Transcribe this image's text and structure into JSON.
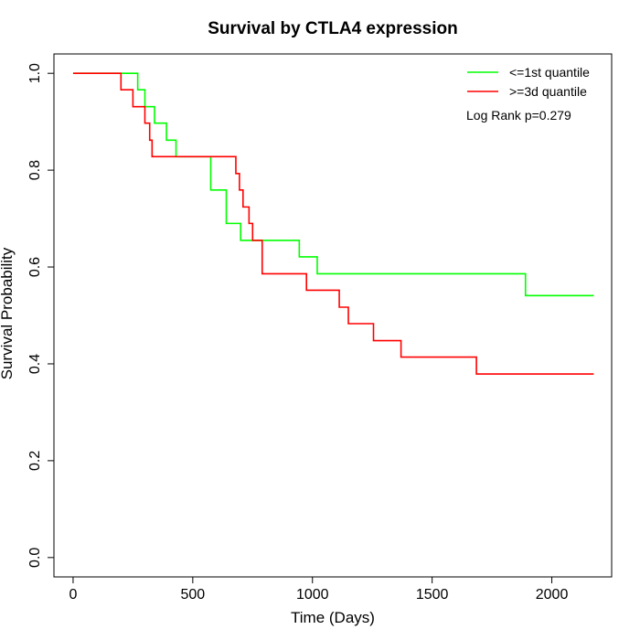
{
  "chart_data": {
    "type": "line",
    "title": "Survival by CTLA4 expression",
    "xlabel": "Time (Days)",
    "ylabel": "Survival Probability",
    "xlim": [
      -80,
      2250
    ],
    "ylim": [
      -0.04,
      1.04
    ],
    "xticks": [
      "0",
      "500",
      "1000",
      "1500",
      "2000"
    ],
    "yticks": [
      "0.0",
      "0.2",
      "0.4",
      "0.6",
      "0.8",
      "1.0"
    ],
    "grid": false,
    "legend_position": "top-right",
    "annotation": "Log Rank p=0.279",
    "series": [
      {
        "name": "<=1st quantile",
        "color": "#00ff00",
        "step": true,
        "x": [
          0,
          270,
          300,
          340,
          390,
          430,
          575,
          640,
          700,
          945,
          1020,
          1890,
          2175
        ],
        "y": [
          1.0,
          0.966,
          0.931,
          0.897,
          0.862,
          0.828,
          0.759,
          0.69,
          0.655,
          0.621,
          0.586,
          0.541,
          0.541
        ]
      },
      {
        "name": ">=3d quantile",
        "color": "#ff0000",
        "step": true,
        "x": [
          0,
          200,
          250,
          300,
          320,
          330,
          670,
          680,
          695,
          710,
          720,
          735,
          740,
          750,
          790,
          975,
          1112,
          1150,
          1255,
          1370,
          1685,
          2175
        ],
        "y": [
          1.0,
          0.966,
          0.931,
          0.897,
          0.862,
          0.828,
          0.828,
          0.793,
          0.759,
          0.724,
          0.724,
          0.69,
          0.69,
          0.655,
          0.586,
          0.552,
          0.517,
          0.483,
          0.448,
          0.414,
          0.379,
          0.379
        ]
      }
    ]
  }
}
